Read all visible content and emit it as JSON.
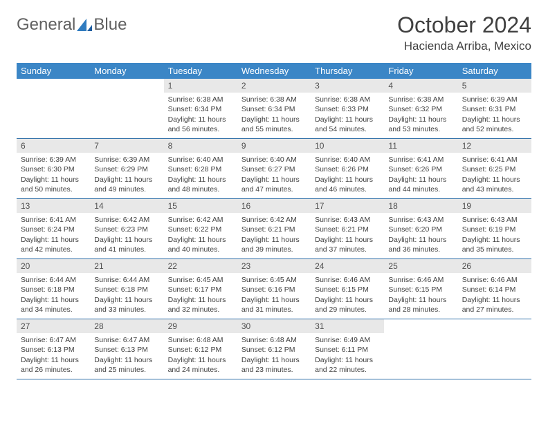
{
  "brand": {
    "word1": "General",
    "word2": "Blue"
  },
  "title": "October 2024",
  "location": "Hacienda Arriba, Mexico",
  "colors": {
    "header_bg": "#3b86c6",
    "header_text": "#ffffff",
    "daynum_bg": "#e8e8e8",
    "rule": "#2f6fa8",
    "text": "#404040",
    "logo_gray": "#606060",
    "logo_blue": "#2f7bbf",
    "page_bg": "#ffffff"
  },
  "weekdays": [
    "Sunday",
    "Monday",
    "Tuesday",
    "Wednesday",
    "Thursday",
    "Friday",
    "Saturday"
  ],
  "weeks": [
    [
      null,
      null,
      {
        "n": "1",
        "sr": "6:38 AM",
        "ss": "6:34 PM",
        "dl": "11 hours and 56 minutes."
      },
      {
        "n": "2",
        "sr": "6:38 AM",
        "ss": "6:34 PM",
        "dl": "11 hours and 55 minutes."
      },
      {
        "n": "3",
        "sr": "6:38 AM",
        "ss": "6:33 PM",
        "dl": "11 hours and 54 minutes."
      },
      {
        "n": "4",
        "sr": "6:38 AM",
        "ss": "6:32 PM",
        "dl": "11 hours and 53 minutes."
      },
      {
        "n": "5",
        "sr": "6:39 AM",
        "ss": "6:31 PM",
        "dl": "11 hours and 52 minutes."
      }
    ],
    [
      {
        "n": "6",
        "sr": "6:39 AM",
        "ss": "6:30 PM",
        "dl": "11 hours and 50 minutes."
      },
      {
        "n": "7",
        "sr": "6:39 AM",
        "ss": "6:29 PM",
        "dl": "11 hours and 49 minutes."
      },
      {
        "n": "8",
        "sr": "6:40 AM",
        "ss": "6:28 PM",
        "dl": "11 hours and 48 minutes."
      },
      {
        "n": "9",
        "sr": "6:40 AM",
        "ss": "6:27 PM",
        "dl": "11 hours and 47 minutes."
      },
      {
        "n": "10",
        "sr": "6:40 AM",
        "ss": "6:26 PM",
        "dl": "11 hours and 46 minutes."
      },
      {
        "n": "11",
        "sr": "6:41 AM",
        "ss": "6:26 PM",
        "dl": "11 hours and 44 minutes."
      },
      {
        "n": "12",
        "sr": "6:41 AM",
        "ss": "6:25 PM",
        "dl": "11 hours and 43 minutes."
      }
    ],
    [
      {
        "n": "13",
        "sr": "6:41 AM",
        "ss": "6:24 PM",
        "dl": "11 hours and 42 minutes."
      },
      {
        "n": "14",
        "sr": "6:42 AM",
        "ss": "6:23 PM",
        "dl": "11 hours and 41 minutes."
      },
      {
        "n": "15",
        "sr": "6:42 AM",
        "ss": "6:22 PM",
        "dl": "11 hours and 40 minutes."
      },
      {
        "n": "16",
        "sr": "6:42 AM",
        "ss": "6:21 PM",
        "dl": "11 hours and 39 minutes."
      },
      {
        "n": "17",
        "sr": "6:43 AM",
        "ss": "6:21 PM",
        "dl": "11 hours and 37 minutes."
      },
      {
        "n": "18",
        "sr": "6:43 AM",
        "ss": "6:20 PM",
        "dl": "11 hours and 36 minutes."
      },
      {
        "n": "19",
        "sr": "6:43 AM",
        "ss": "6:19 PM",
        "dl": "11 hours and 35 minutes."
      }
    ],
    [
      {
        "n": "20",
        "sr": "6:44 AM",
        "ss": "6:18 PM",
        "dl": "11 hours and 34 minutes."
      },
      {
        "n": "21",
        "sr": "6:44 AM",
        "ss": "6:18 PM",
        "dl": "11 hours and 33 minutes."
      },
      {
        "n": "22",
        "sr": "6:45 AM",
        "ss": "6:17 PM",
        "dl": "11 hours and 32 minutes."
      },
      {
        "n": "23",
        "sr": "6:45 AM",
        "ss": "6:16 PM",
        "dl": "11 hours and 31 minutes."
      },
      {
        "n": "24",
        "sr": "6:46 AM",
        "ss": "6:15 PM",
        "dl": "11 hours and 29 minutes."
      },
      {
        "n": "25",
        "sr": "6:46 AM",
        "ss": "6:15 PM",
        "dl": "11 hours and 28 minutes."
      },
      {
        "n": "26",
        "sr": "6:46 AM",
        "ss": "6:14 PM",
        "dl": "11 hours and 27 minutes."
      }
    ],
    [
      {
        "n": "27",
        "sr": "6:47 AM",
        "ss": "6:13 PM",
        "dl": "11 hours and 26 minutes."
      },
      {
        "n": "28",
        "sr": "6:47 AM",
        "ss": "6:13 PM",
        "dl": "11 hours and 25 minutes."
      },
      {
        "n": "29",
        "sr": "6:48 AM",
        "ss": "6:12 PM",
        "dl": "11 hours and 24 minutes."
      },
      {
        "n": "30",
        "sr": "6:48 AM",
        "ss": "6:12 PM",
        "dl": "11 hours and 23 minutes."
      },
      {
        "n": "31",
        "sr": "6:49 AM",
        "ss": "6:11 PM",
        "dl": "11 hours and 22 minutes."
      },
      null,
      null
    ]
  ],
  "labels": {
    "sunrise_prefix": "Sunrise: ",
    "sunset_prefix": "Sunset: ",
    "daylight_prefix": "Daylight: "
  }
}
